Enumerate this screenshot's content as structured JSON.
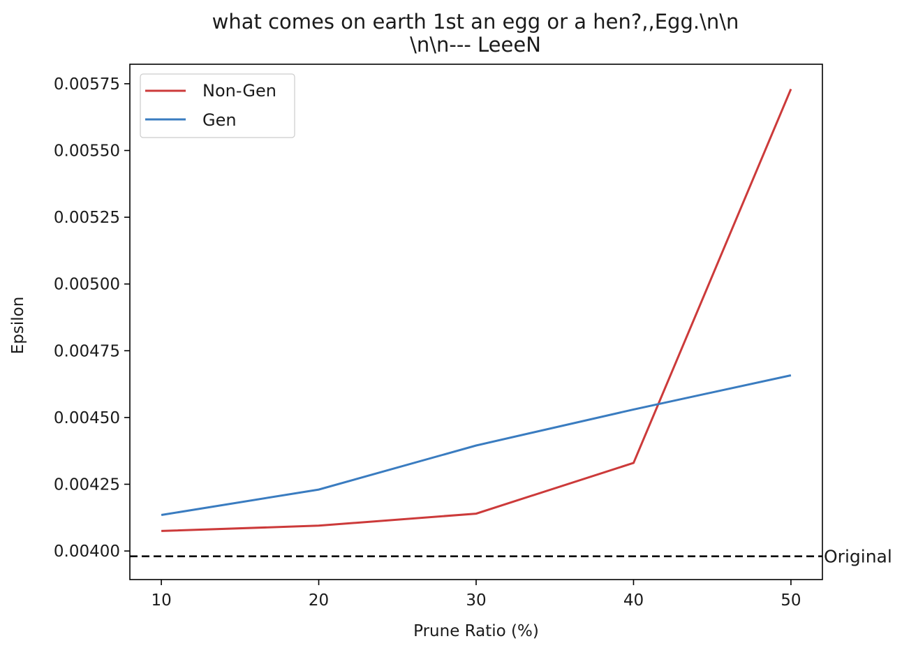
{
  "chart_data": {
    "type": "line",
    "title_lines": [
      "what comes on earth 1st an egg or a hen?,,Egg.\\n\\n",
      "\\n\\n--- LeeeN"
    ],
    "xlabel": "Prune Ratio (%)",
    "ylabel": "Epsilon",
    "x": [
      10,
      20,
      30,
      40,
      50
    ],
    "xticks": [
      10,
      20,
      30,
      40,
      50
    ],
    "xlim": [
      8,
      52
    ],
    "yticks": [
      0.004,
      0.00425,
      0.0045,
      0.00475,
      0.005,
      0.00525,
      0.0055,
      0.00575
    ],
    "ytick_labels": [
      "0.00400",
      "0.00425",
      "0.00450",
      "0.00475",
      "0.00500",
      "0.00525",
      "0.00550",
      "0.00575"
    ],
    "ylim": [
      0.003893,
      0.005823
    ],
    "series": [
      {
        "name": "Non-Gen",
        "color": "#cc3a3a",
        "values": [
          0.004075,
          0.004095,
          0.00414,
          0.00433,
          0.00573
        ]
      },
      {
        "name": "Gen",
        "color": "#3a7cc0",
        "values": [
          0.004135,
          0.00423,
          0.004395,
          0.00453,
          0.004658
        ]
      }
    ],
    "reference_line": {
      "label": "Original",
      "value": 0.00398,
      "color": "#000000",
      "style": "dashed"
    },
    "legend_position": "top-left",
    "grid": false
  }
}
